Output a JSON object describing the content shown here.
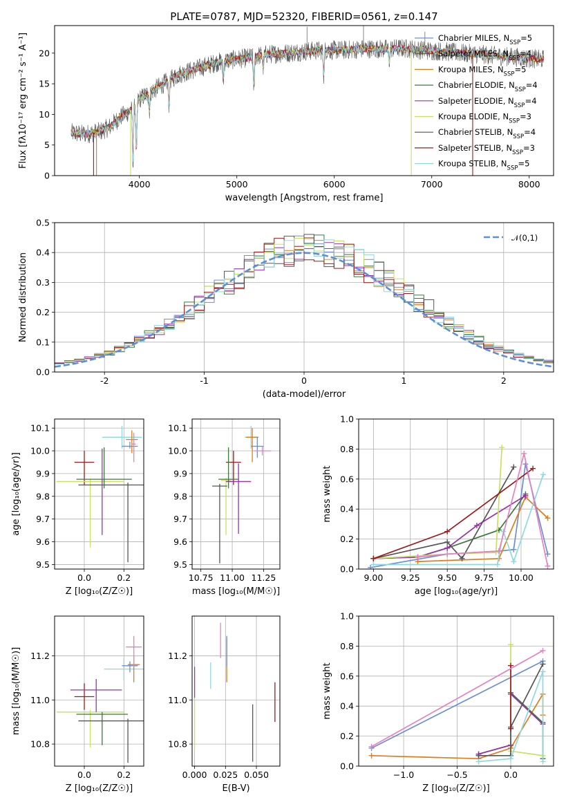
{
  "chart_data": {
    "title": "PLATE=0787, MJD=52320, FIBERID=0561, z=0.147",
    "colors": [
      "#6a8ed8",
      "#e07b1a",
      "#3a7a3a",
      "#9b2fae",
      "#c8e060",
      "#555555",
      "#a01818",
      "#8fd8e0",
      "#e680c0"
    ],
    "spectrum": {
      "type": "line",
      "xlabel": "wavelength [Angstrom, rest frame]",
      "ylabel": "Flux [fλ10⁻¹⁷ erg cm⁻² s⁻¹ A⁻¹]",
      "xlim": [
        3130,
        8250
      ],
      "ylim": [
        0,
        24.5
      ],
      "xticks": [
        4000,
        5000,
        6000,
        7000,
        8000
      ],
      "yticks": [
        0,
        5,
        10,
        15,
        20
      ],
      "series": [
        {
          "name": "Chabrier MILES, N_SSP=5",
          "ci": 0
        },
        {
          "name": "Salpeter MILES, N_SSP=4",
          "ci": 5
        },
        {
          "name": "Kroupa MILES, N_SSP=5",
          "ci": 1
        },
        {
          "name": "Chabrier ELODIE, N_SSP=4",
          "ci": 2
        },
        {
          "name": "Salpeter ELODIE, N_SSP=4",
          "ci": 3
        },
        {
          "name": "Kroupa ELODIE, N_SSP=3",
          "ci": 4
        },
        {
          "name": "Chabrier STELIB, N_SSP=4",
          "ci": 5
        },
        {
          "name": "Salpeter STELIB, N_SSP=3",
          "ci": 6
        },
        {
          "name": "Kroupa STELIB, N_SSP=5",
          "ci": 7
        }
      ],
      "envelope": [
        [
          3300,
          7
        ],
        [
          3400,
          6.8
        ],
        [
          3500,
          6.9
        ],
        [
          3600,
          7.2
        ],
        [
          3700,
          8
        ],
        [
          3800,
          9.5
        ],
        [
          3900,
          10.5
        ],
        [
          3950,
          11.5
        ],
        [
          4000,
          12.5
        ],
        [
          4100,
          13.5
        ],
        [
          4200,
          14.5
        ],
        [
          4300,
          15.5
        ],
        [
          4400,
          16.5
        ],
        [
          4500,
          17
        ],
        [
          4600,
          17.5
        ],
        [
          4700,
          18
        ],
        [
          4800,
          18.5
        ],
        [
          4900,
          18.8
        ],
        [
          5000,
          19
        ],
        [
          5100,
          19.2
        ],
        [
          5200,
          19.5
        ],
        [
          5300,
          19.8
        ],
        [
          5500,
          20
        ],
        [
          5700,
          20.3
        ],
        [
          5900,
          20.5
        ],
        [
          6100,
          20.5
        ],
        [
          6300,
          20.7
        ],
        [
          6500,
          20.7
        ],
        [
          6700,
          20.8
        ],
        [
          6900,
          20.5
        ],
        [
          7100,
          20.3
        ],
        [
          7300,
          20
        ],
        [
          7500,
          19.8
        ],
        [
          7700,
          19.5
        ],
        [
          7900,
          19.3
        ],
        [
          8100,
          19
        ]
      ],
      "absorptions": [
        [
          3934,
          9
        ],
        [
          3969,
          8
        ],
        [
          4102,
          3
        ],
        [
          4304,
          4
        ],
        [
          4861,
          3
        ],
        [
          5175,
          5
        ],
        [
          5270,
          2
        ],
        [
          5892,
          4
        ],
        [
          6563,
          2
        ]
      ],
      "dropouts": [
        [
          3530,
          0
        ],
        [
          3560,
          0
        ],
        [
          3910,
          0
        ],
        [
          6790,
          0
        ],
        [
          7420,
          0
        ]
      ],
      "peaks": [
        [
          6300,
          24.5
        ],
        [
          6930,
          23.5
        ],
        [
          5720,
          24.3
        ]
      ]
    },
    "residuals": {
      "type": "line",
      "xlabel": "(data-model)/error",
      "ylabel": "Normed distribution",
      "xlim": [
        -2.5,
        2.5
      ],
      "ylim": [
        0,
        0.5
      ],
      "xticks": [
        -2,
        -1,
        0,
        1,
        2
      ],
      "yticks": [
        0.0,
        0.1,
        0.2,
        0.3,
        0.4,
        0.5
      ],
      "legend": "𝒩(0,1)",
      "hist_centers": [
        -2.45,
        -2.35,
        -2.25,
        -2.15,
        -2.05,
        -1.95,
        -1.85,
        -1.75,
        -1.65,
        -1.55,
        -1.45,
        -1.35,
        -1.25,
        -1.15,
        -1.05,
        -0.95,
        -0.85,
        -0.75,
        -0.65,
        -0.55,
        -0.45,
        -0.35,
        -0.25,
        -0.15,
        -0.05,
        0.05,
        0.15,
        0.25,
        0.35,
        0.45,
        0.55,
        0.65,
        0.75,
        0.85,
        0.95,
        1.05,
        1.15,
        1.25,
        1.35,
        1.45,
        1.55,
        1.65,
        1.75,
        1.85,
        1.95,
        2.05,
        2.15,
        2.25,
        2.35,
        2.45
      ],
      "pdf_peak": 0.3989
    },
    "age_vs_Z": {
      "type": "scatter",
      "xlabel": "Z [log₁₀(Z/Z☉)]",
      "ylabel": "age  [log₁₀(age/yr)]",
      "xlim": [
        -0.15,
        0.3
      ],
      "ylim": [
        9.48,
        10.14
      ],
      "xticks": [
        0.0,
        0.2
      ],
      "xticklabels": [
        "0.0",
        "0.2"
      ],
      "yticks": [
        9.5,
        9.6,
        9.7,
        9.8,
        9.9,
        10.0,
        10.1
      ],
      "points": [
        {
          "ci": 6,
          "x": 0.0,
          "y": 9.95,
          "xe": 0.05,
          "ye": [
            0.1,
            0.05
          ]
        },
        {
          "ci": 4,
          "x": 0.03,
          "y": 9.865,
          "xe": 0.17,
          "ye": [
            0.29,
            0.01
          ]
        },
        {
          "ci": 2,
          "x": 0.1,
          "y": 9.875,
          "xe": 0.14,
          "ye": [
            0.04,
            0.14
          ]
        },
        {
          "ci": 3,
          "x": 0.09,
          "y": 9.87,
          "xe": 0.0,
          "ye": [
            0.24,
            0.14
          ]
        },
        {
          "ci": 5,
          "x": 0.22,
          "y": 9.85,
          "xe": 0.25,
          "ye": [
            0.34,
            0.01
          ]
        },
        {
          "ci": 7,
          "x": 0.19,
          "y": 10.06,
          "xe": 0.1,
          "ye": [
            0.05,
            0.05
          ]
        },
        {
          "ci": 1,
          "x": 0.24,
          "y": 10.05,
          "xe": 0.03,
          "ye": [
            0.06,
            0.04
          ]
        },
        {
          "ci": 0,
          "x": 0.23,
          "y": 10.02,
          "xe": 0.04,
          "ye": [
            0.01,
            0.02
          ]
        },
        {
          "ci": 8,
          "x": 0.25,
          "y": 10.03,
          "xe": 0.01,
          "ye": [
            0.08,
            0.05
          ]
        }
      ]
    },
    "age_vs_mass": {
      "type": "scatter",
      "xlabel": "mass [log₁₀(M/M☉)]",
      "ylabel": "",
      "xlim": [
        10.68,
        11.38
      ],
      "ylim": [
        9.48,
        10.14
      ],
      "xticks": [
        10.75,
        11.0,
        11.25
      ],
      "xticklabels": [
        "10.75",
        "11.00",
        "11.25"
      ],
      "yticks": [
        9.5,
        9.6,
        9.7,
        9.8,
        9.9,
        10.0,
        10.1
      ],
      "points": [
        {
          "ci": 6,
          "x": 11.01,
          "y": 9.95,
          "xe": 0.06,
          "ye": [
            0.1,
            0.05
          ]
        },
        {
          "ci": 4,
          "x": 10.95,
          "y": 9.87,
          "xe": 0.04,
          "ye": [
            0.24,
            0.01
          ]
        },
        {
          "ci": 2,
          "x": 10.97,
          "y": 9.875,
          "xe": 0.08,
          "ye": [
            0.04,
            0.14
          ]
        },
        {
          "ci": 3,
          "x": 11.05,
          "y": 9.865,
          "xe": 0.1,
          "ye": [
            0.23,
            0.08
          ]
        },
        {
          "ci": 5,
          "x": 10.9,
          "y": 9.845,
          "xe": 0.06,
          "ye": [
            0.34,
            0.01
          ]
        },
        {
          "ci": 7,
          "x": 11.15,
          "y": 10.06,
          "xe": 0.05,
          "ye": [
            0.05,
            0.05
          ]
        },
        {
          "ci": 1,
          "x": 11.16,
          "y": 10.06,
          "xe": 0.05,
          "ye": [
            0.11,
            0.04
          ]
        },
        {
          "ci": 0,
          "x": 11.2,
          "y": 10.02,
          "xe": 0.05,
          "ye": [
            0.05,
            0.04
          ]
        },
        {
          "ci": 8,
          "x": 11.24,
          "y": 10.0,
          "xe": 0.07,
          "ye": [
            0.02,
            0.02
          ]
        }
      ]
    },
    "mass_weight_vs_age": {
      "type": "line",
      "xlabel": "age  [log₁₀(age/yr)]",
      "ylabel": "mass weight",
      "xlim": [
        8.9,
        10.22
      ],
      "ylim": [
        0,
        1.0
      ],
      "xticks": [
        9.0,
        9.25,
        9.5,
        9.75,
        10.0
      ],
      "xticklabels": [
        "9.00",
        "9.25",
        "9.50",
        "9.75",
        "10.00"
      ],
      "yticks": [
        0.0,
        0.2,
        0.4,
        0.6,
        0.8,
        1.0
      ],
      "series": [
        {
          "ci": 0,
          "x": [
            8.98,
            9.5,
            9.85,
            9.95,
            10.03,
            10.18
          ],
          "y": [
            0.01,
            0.1,
            0.12,
            0.13,
            0.7,
            0.1
          ]
        },
        {
          "ci": 1,
          "x": [
            9.3,
            9.85,
            10.03,
            10.18
          ],
          "y": [
            0.05,
            0.07,
            0.48,
            0.34
          ]
        },
        {
          "ci": 2,
          "x": [
            9.0,
            9.3,
            9.5,
            9.85,
            10.03
          ],
          "y": [
            0.07,
            0.08,
            0.14,
            0.26,
            0.5
          ]
        },
        {
          "ci": 3,
          "x": [
            9.0,
            9.3,
            9.5,
            9.7,
            10.03
          ],
          "y": [
            0.07,
            0.08,
            0.14,
            0.29,
            0.49
          ]
        },
        {
          "ci": 4,
          "x": [
            9.0,
            9.5,
            9.83,
            9.87
          ],
          "y": [
            0.07,
            0.1,
            0.11,
            0.81
          ]
        },
        {
          "ci": 5,
          "x": [
            9.0,
            9.5,
            9.6,
            9.95
          ],
          "y": [
            0.07,
            0.18,
            0.07,
            0.68
          ]
        },
        {
          "ci": 6,
          "x": [
            9.0,
            9.5,
            10.08
          ],
          "y": [
            0.07,
            0.25,
            0.67
          ]
        },
        {
          "ci": 7,
          "x": [
            9.0,
            9.84,
            9.88,
            9.95,
            10.15
          ],
          "y": [
            0.03,
            0.03,
            0.25,
            0.05,
            0.63
          ]
        },
        {
          "ci": 8,
          "x": [
            9.3,
            9.5,
            9.85,
            10.02,
            10.18
          ],
          "y": [
            0.08,
            0.1,
            0.12,
            0.77,
            0.02
          ]
        }
      ]
    },
    "mass_vs_Z": {
      "type": "scatter",
      "xlabel": "Z [log₁₀(Z/Z☉)]",
      "ylabel": "mass [log₁₀(M/M☉)]",
      "xlim": [
        -0.15,
        0.3
      ],
      "ylim": [
        10.7,
        11.38
      ],
      "xticks": [
        0.0,
        0.2
      ],
      "xticklabels": [
        "0.0",
        "0.2"
      ],
      "yticks": [
        10.8,
        11.0,
        11.2
      ],
      "yticklabels": [
        "10.8",
        "11.0",
        "11.2"
      ],
      "points": [
        {
          "ci": 6,
          "x": 0.0,
          "y": 11.015,
          "xe": 0.05,
          "ye": [
            0.06,
            0.06
          ]
        },
        {
          "ci": 4,
          "x": 0.03,
          "y": 10.945,
          "xe": 0.17,
          "ye": [
            0.16,
            0.01
          ]
        },
        {
          "ci": 2,
          "x": 0.09,
          "y": 10.935,
          "xe": 0.13,
          "ye": [
            0.14,
            0.01
          ]
        },
        {
          "ci": 3,
          "x": 0.06,
          "y": 11.045,
          "xe": 0.13,
          "ye": [
            0.1,
            0.05
          ]
        },
        {
          "ci": 5,
          "x": 0.22,
          "y": 10.905,
          "xe": 0.25,
          "ye": [
            0.19,
            0.01
          ]
        },
        {
          "ci": 7,
          "x": 0.2,
          "y": 11.14,
          "xe": 0.1,
          "ye": [
            0.05,
            0.05
          ]
        },
        {
          "ci": 1,
          "x": 0.25,
          "y": 11.16,
          "xe": 0.03,
          "ye": [
            0.08,
            0.04
          ]
        },
        {
          "ci": 0,
          "x": 0.23,
          "y": 11.155,
          "xe": 0.04,
          "ye": [
            0.03,
            0.02
          ]
        },
        {
          "ci": 8,
          "x": 0.25,
          "y": 11.24,
          "xe": 0.04,
          "ye": [
            0.09,
            0.05
          ]
        }
      ]
    },
    "mass_vs_ebv": {
      "type": "scatter",
      "xlabel": "E(B-V)",
      "ylabel": "",
      "xlim": [
        -0.002,
        0.069
      ],
      "ylim": [
        10.7,
        11.38
      ],
      "xticks": [
        0.0,
        0.025,
        0.05
      ],
      "xticklabels": [
        "0.000",
        "0.025",
        "0.050"
      ],
      "yticks": [
        10.8,
        11.0,
        11.2
      ],
      "yticklabels": [
        "10.8",
        "11.0",
        "11.2"
      ],
      "points": [
        {
          "ci": 4,
          "x": 0.0,
          "y": 10.9,
          "xe": 0,
          "ye": [
            0.12,
            0.1
          ]
        },
        {
          "ci": 3,
          "x": 0.0,
          "y": 11.08,
          "xe": 0,
          "ye": [
            0.07,
            0.07
          ]
        },
        {
          "ci": 7,
          "x": 0.013,
          "y": 11.11,
          "xe": 0,
          "ye": [
            0.06,
            0.06
          ]
        },
        {
          "ci": 8,
          "x": 0.021,
          "y": 11.27,
          "xe": 0,
          "ye": [
            0.08,
            0.08
          ]
        },
        {
          "ci": 1,
          "x": 0.026,
          "y": 11.18,
          "xe": 0,
          "ye": [
            0.1,
            0.1
          ]
        },
        {
          "ci": 0,
          "x": 0.026,
          "y": 11.22,
          "xe": 0,
          "ye": [
            0.07,
            0.07
          ]
        },
        {
          "ci": 5,
          "x": 0.047,
          "y": 10.85,
          "xe": 0,
          "ye": [
            0.13,
            0.13
          ]
        },
        {
          "ci": 6,
          "x": 0.065,
          "y": 10.99,
          "xe": 0,
          "ye": [
            0.09,
            0.09
          ]
        }
      ]
    },
    "mass_weight_vs_Z": {
      "type": "line",
      "xlabel": "Z [log₁₀(Z/Z☉)]",
      "ylabel": "mass weight",
      "xlim": [
        -1.42,
        0.4
      ],
      "ylim": [
        0,
        1.0
      ],
      "xticks": [
        -1.0,
        -0.5,
        0.0
      ],
      "xticklabels": [
        "−1.0",
        "−0.5",
        "0.0"
      ],
      "yticks": [
        0.0,
        0.2,
        0.4,
        0.6,
        0.8,
        1.0
      ],
      "series": [
        {
          "ci": 0,
          "x": [
            -1.3,
            0.3
          ],
          "y": [
            0.12,
            0.7
          ]
        },
        {
          "ci": 1,
          "x": [
            -1.3,
            -0.3,
            0.0,
            0.3,
            0.3
          ],
          "y": [
            0.07,
            0.05,
            0.12,
            0.48,
            0.34
          ]
        },
        {
          "ci": 2,
          "x": [
            -0.3,
            0.0,
            0.0,
            0.3,
            0.3
          ],
          "y": [
            0.08,
            0.14,
            0.49,
            0.29,
            0.05
          ]
        },
        {
          "ci": 3,
          "x": [
            -0.3,
            0.0,
            0.0,
            0.3
          ],
          "y": [
            0.08,
            0.14,
            0.48,
            0.28
          ]
        },
        {
          "ci": 4,
          "x": [
            0.0,
            0.0,
            0.3
          ],
          "y": [
            0.81,
            0.1,
            0.07
          ]
        },
        {
          "ci": 5,
          "x": [
            -0.3,
            0.0,
            0.0,
            0.3
          ],
          "y": [
            0.07,
            0.07,
            0.26,
            0.68
          ]
        },
        {
          "ci": 6,
          "x": [
            0.0,
            0.0
          ],
          "y": [
            0.25,
            0.67
          ]
        },
        {
          "ci": 7,
          "x": [
            -0.3,
            0.0,
            0.3,
            0.3
          ],
          "y": [
            0.03,
            0.05,
            0.63,
            0.03
          ]
        },
        {
          "ci": 8,
          "x": [
            -1.3,
            0.3
          ],
          "y": [
            0.13,
            0.77
          ]
        }
      ]
    }
  }
}
